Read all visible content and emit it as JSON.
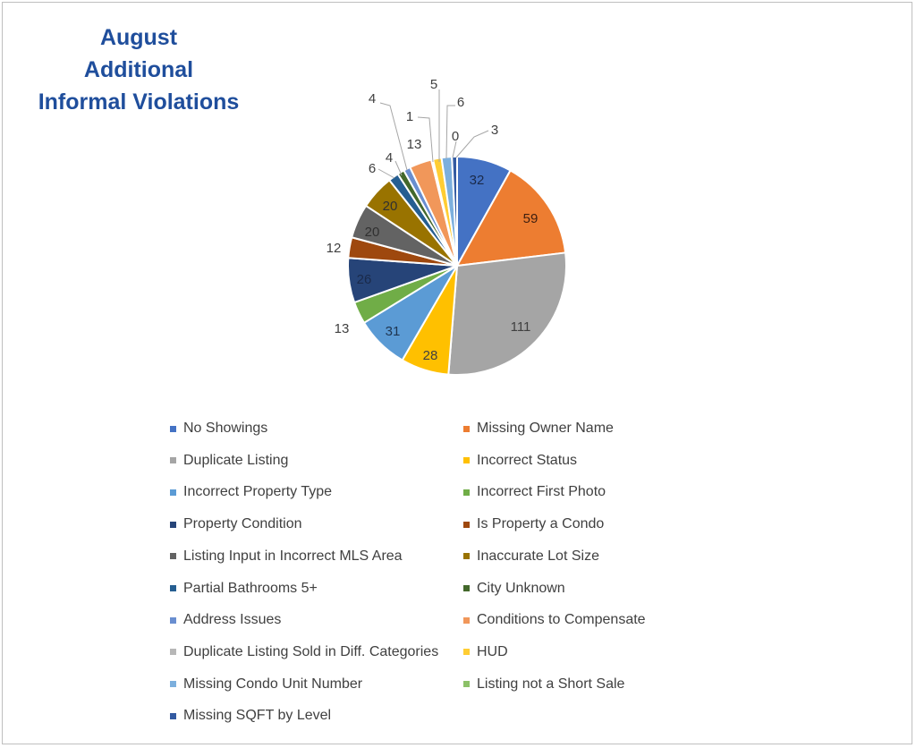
{
  "title_lines": [
    "August",
    "Additional",
    "Informal Violations"
  ],
  "chart_data": {
    "type": "pie",
    "title": "August Additional Informal Violations",
    "legend_position": "bottom",
    "start_angle_deg": 0,
    "direction": "clockwise",
    "slices": [
      {
        "label": "No Showings",
        "value": 32,
        "color": "#4472c4"
      },
      {
        "label": "Missing Owner Name",
        "value": 59,
        "color": "#ed7d31"
      },
      {
        "label": "Duplicate Listing",
        "value": 111,
        "color": "#a5a5a5"
      },
      {
        "label": "Incorrect Status",
        "value": 28,
        "color": "#ffc000"
      },
      {
        "label": "Incorrect Property Type",
        "value": 31,
        "color": "#5b9bd5"
      },
      {
        "label": "Incorrect First Photo",
        "value": 13,
        "color": "#70ad47"
      },
      {
        "label": "Property Condition",
        "value": 26,
        "color": "#264478"
      },
      {
        "label": "Is Property a Condo",
        "value": 12,
        "color": "#9e480e"
      },
      {
        "label": "Listing Input in Incorrect MLS Area",
        "value": 20,
        "color": "#636363"
      },
      {
        "label": "Inaccurate Lot Size",
        "value": 20,
        "color": "#997300"
      },
      {
        "label": "Partial Bathrooms 5+",
        "value": 6,
        "color": "#255e91"
      },
      {
        "label": "City Unknown",
        "value": 4,
        "color": "#43682b"
      },
      {
        "label": "Address Issues",
        "value": 4,
        "color": "#698ed0"
      },
      {
        "label": "Conditions to Compensate",
        "value": 13,
        "color": "#f1975a"
      },
      {
        "label": "Duplicate Listing Sold in Diff. Categories",
        "value": 1,
        "color": "#b7b7b7"
      },
      {
        "label": "HUD",
        "value": 5,
        "color": "#ffcd33"
      },
      {
        "label": "Missing Condo Unit Number",
        "value": 6,
        "color": "#7cafdd"
      },
      {
        "label": "Listing not a Short Sale",
        "value": 0,
        "color": "#8cc168"
      },
      {
        "label": "Missing SQFT by Level",
        "value": 3,
        "color": "#335aa1"
      }
    ]
  }
}
